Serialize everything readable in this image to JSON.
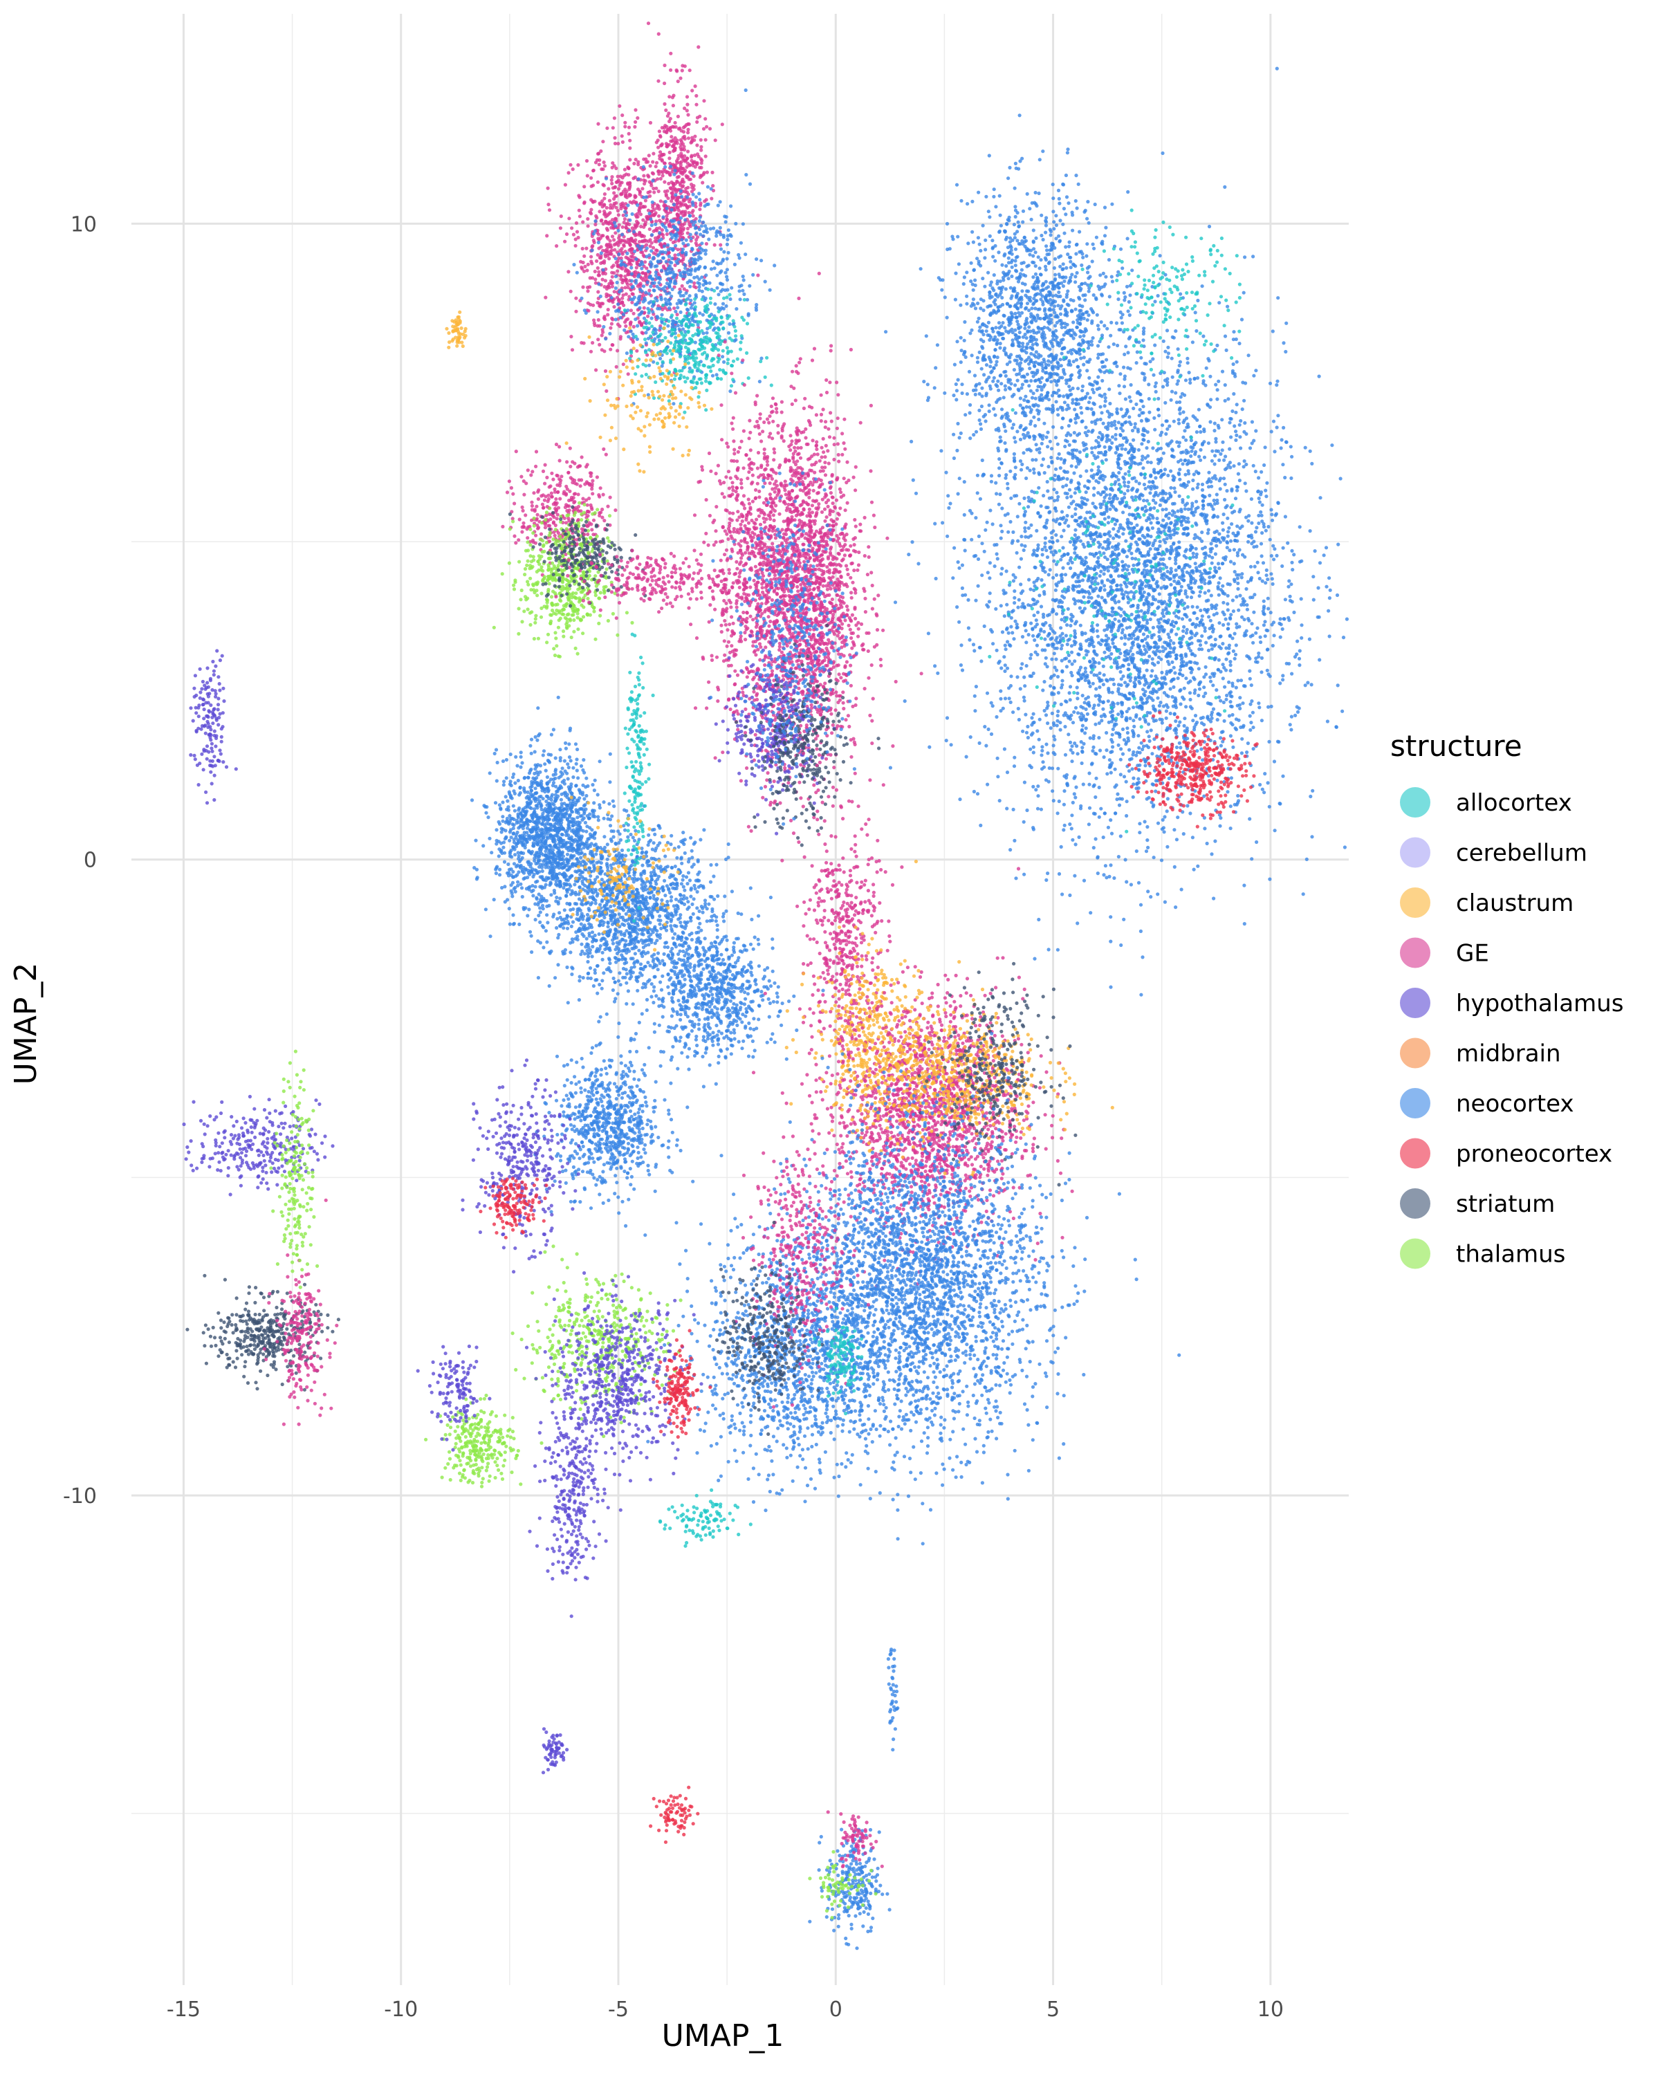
{
  "chart_data": {
    "type": "scatter",
    "title": "",
    "xlabel": "UMAP_1",
    "ylabel": "UMAP_2",
    "xlim": [
      -16.2,
      11.8
    ],
    "ylim": [
      -17.7,
      13.3
    ],
    "x_ticks": [
      -15,
      -10,
      -5,
      0,
      5,
      10
    ],
    "x_tick_labels": [
      "-15",
      "-10",
      "-5",
      "0",
      "5",
      "10"
    ],
    "y_ticks": [
      -10,
      0,
      10
    ],
    "y_tick_labels": [
      "-10",
      "0",
      "10"
    ],
    "grid": true,
    "legend": {
      "title": "structure",
      "position": "right",
      "entries": [
        {
          "label": "allocortex",
          "color": "#1fc8c8"
        },
        {
          "label": "cerebellum",
          "color": "#a8a4f5"
        },
        {
          "label": "claustrum",
          "color": "#fbb53a"
        },
        {
          "label": "GE",
          "color": "#d93a93"
        },
        {
          "label": "hypothalamus",
          "color": "#5d4bd4"
        },
        {
          "label": "midbrain",
          "color": "#f78a42"
        },
        {
          "label": "neocortex",
          "color": "#3b87e6"
        },
        {
          "label": "proneocortex",
          "color": "#ec2f4a"
        },
        {
          "label": "striatum",
          "color": "#3e5473"
        },
        {
          "label": "thalamus",
          "color": "#8ee84a"
        }
      ]
    },
    "clusters": [
      {
        "series": "neocortex",
        "x": 6.9,
        "y": 4.3,
        "sx": 1.7,
        "sy": 1.9,
        "n": 4200
      },
      {
        "series": "neocortex",
        "x": 4.6,
        "y": 8.4,
        "sx": 0.9,
        "sy": 1.0,
        "n": 1300
      },
      {
        "series": "proneocortex",
        "x": 8.2,
        "y": 1.4,
        "sx": 0.6,
        "sy": 0.3,
        "n": 380
      },
      {
        "series": "allocortex",
        "x": 7.6,
        "y": 8.9,
        "sx": 0.8,
        "sy": 0.5,
        "n": 170
      },
      {
        "series": "allocortex",
        "x": 6.6,
        "y": 4.5,
        "sx": 1.2,
        "sy": 1.2,
        "n": 140
      },
      {
        "series": "GE",
        "x": -4.8,
        "y": 9.6,
        "sx": 0.6,
        "sy": 0.8,
        "n": 900
      },
      {
        "series": "GE",
        "x": -3.6,
        "y": 10.6,
        "sx": 0.3,
        "sy": 0.8,
        "n": 500
      },
      {
        "series": "neocortex",
        "x": -3.6,
        "y": 9.1,
        "sx": 0.8,
        "sy": 0.7,
        "n": 650
      },
      {
        "series": "allocortex",
        "x": -3.3,
        "y": 8.0,
        "sx": 0.6,
        "sy": 0.4,
        "n": 320
      },
      {
        "series": "claustrum",
        "x": -4.2,
        "y": 7.3,
        "sx": 0.6,
        "sy": 0.5,
        "n": 140
      },
      {
        "series": "GE",
        "x": -0.6,
        "y": 4.2,
        "sx": 0.6,
        "sy": 1.4,
        "n": 1700
      },
      {
        "series": "GE",
        "x": -1.8,
        "y": 4.5,
        "sx": 0.6,
        "sy": 1.2,
        "n": 900
      },
      {
        "series": "hypothalamus",
        "x": -1.4,
        "y": 2.1,
        "sx": 0.5,
        "sy": 0.5,
        "n": 320
      },
      {
        "series": "striatum",
        "x": -0.8,
        "y": 1.7,
        "sx": 0.5,
        "sy": 0.6,
        "n": 300
      },
      {
        "series": "neocortex",
        "x": -1.0,
        "y": 3.5,
        "sx": 0.6,
        "sy": 1.0,
        "n": 420
      },
      {
        "series": "GE",
        "x": 0.2,
        "y": -1.2,
        "sx": 0.4,
        "sy": 0.9,
        "n": 420
      },
      {
        "series": "claustrum",
        "x": 0.7,
        "y": -2.6,
        "sx": 0.6,
        "sy": 0.6,
        "n": 300
      },
      {
        "series": "GE",
        "x": -6.3,
        "y": 5.5,
        "sx": 0.5,
        "sy": 0.4,
        "n": 330
      },
      {
        "series": "thalamus",
        "x": -6.2,
        "y": 4.4,
        "sx": 0.5,
        "sy": 0.5,
        "n": 520
      },
      {
        "series": "striatum",
        "x": -5.8,
        "y": 4.8,
        "sx": 0.5,
        "sy": 0.3,
        "n": 220
      },
      {
        "series": "GE",
        "x": -4.2,
        "y": 4.4,
        "sx": 0.8,
        "sy": 0.2,
        "n": 220
      },
      {
        "series": "neocortex",
        "x": -6.6,
        "y": 0.4,
        "sx": 0.6,
        "sy": 0.6,
        "n": 1300
      },
      {
        "series": "neocortex",
        "x": -4.7,
        "y": -0.8,
        "sx": 0.9,
        "sy": 0.6,
        "n": 1300
      },
      {
        "series": "neocortex",
        "x": -2.8,
        "y": -2.1,
        "sx": 0.7,
        "sy": 0.5,
        "n": 700
      },
      {
        "series": "allocortex",
        "x": -4.6,
        "y": 1.5,
        "sx": 0.12,
        "sy": 0.9,
        "n": 160
      },
      {
        "series": "claustrum",
        "x": -4.9,
        "y": -0.3,
        "sx": 0.5,
        "sy": 0.4,
        "n": 120
      },
      {
        "series": "GE",
        "x": 2.1,
        "y": -4.0,
        "sx": 1.1,
        "sy": 0.9,
        "n": 1700
      },
      {
        "series": "claustrum",
        "x": 2.4,
        "y": -3.4,
        "sx": 1.2,
        "sy": 0.5,
        "n": 750
      },
      {
        "series": "striatum",
        "x": 3.6,
        "y": -3.3,
        "sx": 0.6,
        "sy": 0.6,
        "n": 300
      },
      {
        "series": "neocortex",
        "x": 1.9,
        "y": -6.7,
        "sx": 1.4,
        "sy": 1.2,
        "n": 2800
      },
      {
        "series": "neocortex",
        "x": -1.0,
        "y": -7.8,
        "sx": 1.0,
        "sy": 0.9,
        "n": 1100
      },
      {
        "series": "GE",
        "x": -0.9,
        "y": -6.2,
        "sx": 0.5,
        "sy": 0.8,
        "n": 320
      },
      {
        "series": "striatum",
        "x": -1.6,
        "y": -7.5,
        "sx": 0.5,
        "sy": 0.5,
        "n": 280
      },
      {
        "series": "allocortex",
        "x": 0.1,
        "y": -7.8,
        "sx": 0.2,
        "sy": 0.3,
        "n": 120
      },
      {
        "series": "neocortex",
        "x": -5.2,
        "y": -4.2,
        "sx": 0.6,
        "sy": 0.5,
        "n": 700
      },
      {
        "series": "hypothalamus",
        "x": -7.2,
        "y": -4.8,
        "sx": 0.5,
        "sy": 0.6,
        "n": 320
      },
      {
        "series": "proneocortex",
        "x": -7.4,
        "y": -5.4,
        "sx": 0.3,
        "sy": 0.2,
        "n": 140
      },
      {
        "series": "thalamus",
        "x": -5.5,
        "y": -7.6,
        "sx": 0.8,
        "sy": 0.5,
        "n": 400
      },
      {
        "series": "hypothalamus",
        "x": -5.0,
        "y": -8.2,
        "sx": 0.7,
        "sy": 0.6,
        "n": 520
      },
      {
        "series": "proneocortex",
        "x": -3.6,
        "y": -8.4,
        "sx": 0.2,
        "sy": 0.3,
        "n": 160
      },
      {
        "series": "thalamus",
        "x": -8.2,
        "y": -9.2,
        "sx": 0.4,
        "sy": 0.3,
        "n": 260
      },
      {
        "series": "hypothalamus",
        "x": -8.7,
        "y": -8.4,
        "sx": 0.3,
        "sy": 0.3,
        "n": 120
      },
      {
        "series": "hypothalamus",
        "x": -6.1,
        "y": -9.9,
        "sx": 0.3,
        "sy": 0.7,
        "n": 260
      },
      {
        "series": "striatum",
        "x": -13.1,
        "y": -7.5,
        "sx": 0.6,
        "sy": 0.3,
        "n": 380
      },
      {
        "series": "GE",
        "x": -12.3,
        "y": -7.5,
        "sx": 0.3,
        "sy": 0.5,
        "n": 200
      },
      {
        "series": "hypothalamus",
        "x": -13.3,
        "y": -4.5,
        "sx": 0.7,
        "sy": 0.3,
        "n": 260
      },
      {
        "series": "thalamus",
        "x": -12.4,
        "y": -5.0,
        "sx": 0.2,
        "sy": 0.8,
        "n": 170
      },
      {
        "series": "hypothalamus",
        "x": -14.4,
        "y": 2.1,
        "sx": 0.2,
        "sy": 0.5,
        "n": 140
      },
      {
        "series": "allocortex",
        "x": -3.1,
        "y": -10.4,
        "sx": 0.4,
        "sy": 0.2,
        "n": 90
      },
      {
        "series": "neocortex",
        "x": 0.4,
        "y": -16.1,
        "sx": 0.3,
        "sy": 0.4,
        "n": 240
      },
      {
        "series": "GE",
        "x": 0.5,
        "y": -15.4,
        "sx": 0.2,
        "sy": 0.2,
        "n": 70
      },
      {
        "series": "thalamus",
        "x": 0.1,
        "y": -16.1,
        "sx": 0.3,
        "sy": 0.2,
        "n": 60
      },
      {
        "series": "hypothalamus",
        "x": -6.5,
        "y": -14.0,
        "sx": 0.15,
        "sy": 0.15,
        "n": 60
      },
      {
        "series": "proneocortex",
        "x": -3.7,
        "y": -15.0,
        "sx": 0.2,
        "sy": 0.15,
        "n": 70
      },
      {
        "series": "claustrum",
        "x": -8.7,
        "y": 8.3,
        "sx": 0.1,
        "sy": 0.15,
        "n": 50
      },
      {
        "series": "neocortex",
        "x": 1.3,
        "y": -13.1,
        "sx": 0.05,
        "sy": 0.4,
        "n": 40
      }
    ]
  }
}
